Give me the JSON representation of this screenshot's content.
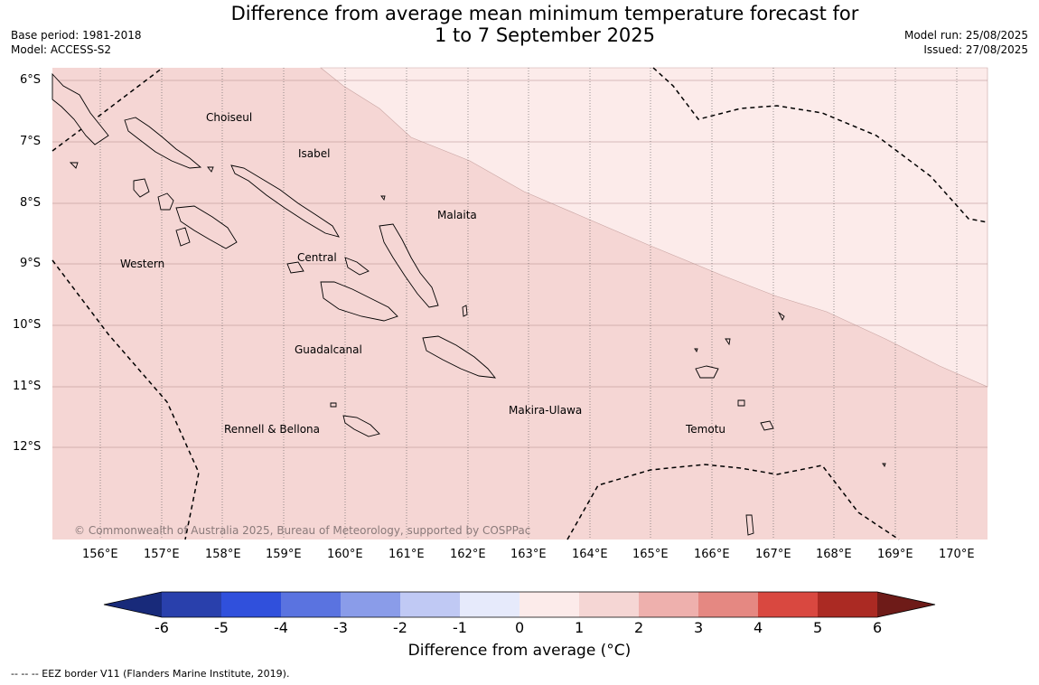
{
  "title": {
    "line1": "Difference from average mean minimum temperature forecast for",
    "line2": "1 to 7 September 2025"
  },
  "meta_left": {
    "base_period": "Base period: 1981-2018",
    "model": "Model: ACCESS-S2"
  },
  "meta_right": {
    "model_run": "Model run: 25/08/2025",
    "issued": "Issued: 27/08/2025"
  },
  "map": {
    "lat_labels": [
      "6°S",
      "7°S",
      "8°S",
      "9°S",
      "10°S",
      "11°S",
      "12°S"
    ],
    "lon_labels": [
      "156°E",
      "157°E",
      "158°E",
      "159°E",
      "160°E",
      "161°E",
      "162°E",
      "163°E",
      "164°E",
      "165°E",
      "166°E",
      "167°E",
      "168°E",
      "169°E",
      "170°E"
    ],
    "regions": [
      "Choiseul",
      "Isabel",
      "Malaita",
      "Western",
      "Central",
      "Guadalcanal",
      "Makira-Ulawa",
      "Rennell & Bellona",
      "Temotu"
    ],
    "copyright": "© Commonwealth of Australia 2025, Bureau of Meteorology, supported by COSPPac",
    "fill_colors": {
      "anomaly_0_to_1": "#fcebea",
      "anomaly_1_to_2": "#f5d6d4"
    },
    "eez_line_color": "#000000"
  },
  "colorbar": {
    "ticks": [
      "-6",
      "-5",
      "-4",
      "-3",
      "-2",
      "-1",
      "0",
      "1",
      "2",
      "3",
      "4",
      "5",
      "6"
    ],
    "colors": [
      "#182a7a",
      "#2940ac",
      "#3050dc",
      "#5a73e0",
      "#8a9ce9",
      "#c0c9f4",
      "#e6eafb",
      "#fcebea",
      "#f5d6d4",
      "#eeb0ad",
      "#e58882",
      "#d94840",
      "#ab2a23",
      "#6e1b18"
    ],
    "label": "Difference from average (°C)"
  },
  "footer": {
    "eez_note": "--  --  -- EEZ border V11 (Flanders Marine Institute, 2019)."
  }
}
